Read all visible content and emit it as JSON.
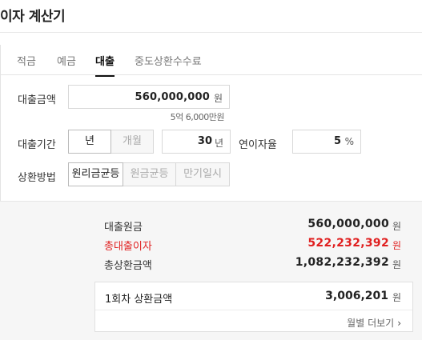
{
  "header": {
    "title": "이자 계산기"
  },
  "tabs": [
    {
      "label": "적금"
    },
    {
      "label": "예금"
    },
    {
      "label": "대출"
    },
    {
      "label": "중도상환수수료"
    }
  ],
  "form": {
    "amount_label": "대출금액",
    "amount_value": "560,000,000",
    "amount_unit": "원",
    "amount_korean": "5억 6,000만원",
    "period_label": "대출기간",
    "period_unit_year": "년",
    "period_unit_month": "개월",
    "period_value": "30",
    "period_value_unit": "년",
    "rate_label": "연이자율",
    "rate_value": "5",
    "rate_unit": "%",
    "method_label": "상환방법",
    "methods": [
      "원리금균등",
      "원금균등",
      "만기일시"
    ]
  },
  "result": {
    "principal_label": "대출원금",
    "principal_value": "560,000,000",
    "interest_label": "총대출이자",
    "interest_value": "522,232,392",
    "total_label": "총상환금액",
    "total_value": "1,082,232,392",
    "unit": "원",
    "monthly_label": "1회차 상환금액",
    "monthly_value": "3,006,201",
    "monthly_more": "월별 더보기"
  },
  "colors": {
    "accent_red": "#e02020",
    "active_tab": "#111111"
  }
}
